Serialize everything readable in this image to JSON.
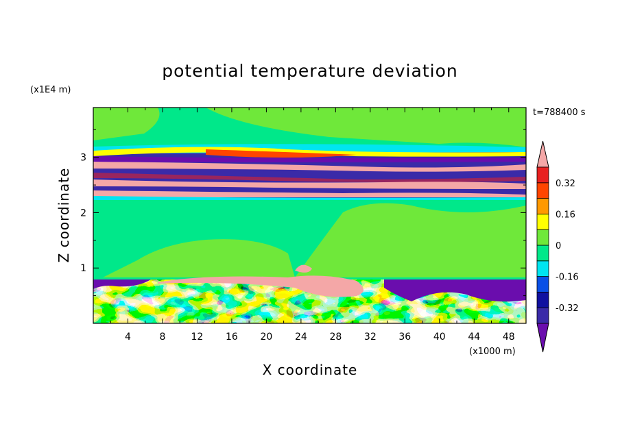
{
  "chart_data": {
    "type": "heatmap",
    "title": "potential temperature deviation",
    "xlabel": "X coordinate",
    "ylabel": "Z coordinate",
    "x_unit": "(x1000 m)",
    "y_unit": "(x1E4 m)",
    "time_label": "t=788400 s",
    "xlim": [
      0,
      50
    ],
    "ylim": [
      0,
      3.9
    ],
    "x_ticks": [
      4,
      8,
      12,
      16,
      20,
      24,
      28,
      32,
      36,
      40,
      44,
      48
    ],
    "y_ticks": [
      1,
      2,
      3
    ],
    "colorbar": {
      "levels": [
        -0.4,
        -0.32,
        -0.24,
        -0.16,
        -0.08,
        0,
        0.08,
        0.16,
        0.24,
        0.32,
        0.4
      ],
      "colors": [
        "#6a0dad",
        "#3a2aa8",
        "#1010a0",
        "#0a50e6",
        "#00e5f0",
        "#00e88a",
        "#6fe83a",
        "#ffff00",
        "#ff9900",
        "#ff4500",
        "#e82020",
        "#f4a7a7"
      ],
      "tick_labels": [
        "0.32",
        "0.16",
        "0",
        "-0.16",
        "-0.32"
      ],
      "tick_values": [
        0.32,
        0.16,
        0,
        -0.16,
        -0.32
      ],
      "extend": "both"
    },
    "bands": [
      {
        "z": [
          0.0,
          0.82
        ],
        "value": "mixed",
        "note_values": [
          -0.4,
          -0.16,
          0,
          0.16,
          0.4
        ]
      },
      {
        "z": [
          0.82,
          2.3
        ],
        "value": 0.04
      },
      {
        "z": [
          2.3,
          3.2
        ],
        "value": "alternating",
        "note_values": [
          -0.4,
          0.4,
          -0.4,
          0.4,
          -0.4
        ]
      },
      {
        "z": [
          3.2,
          3.9
        ],
        "value": 0.04
      }
    ]
  }
}
